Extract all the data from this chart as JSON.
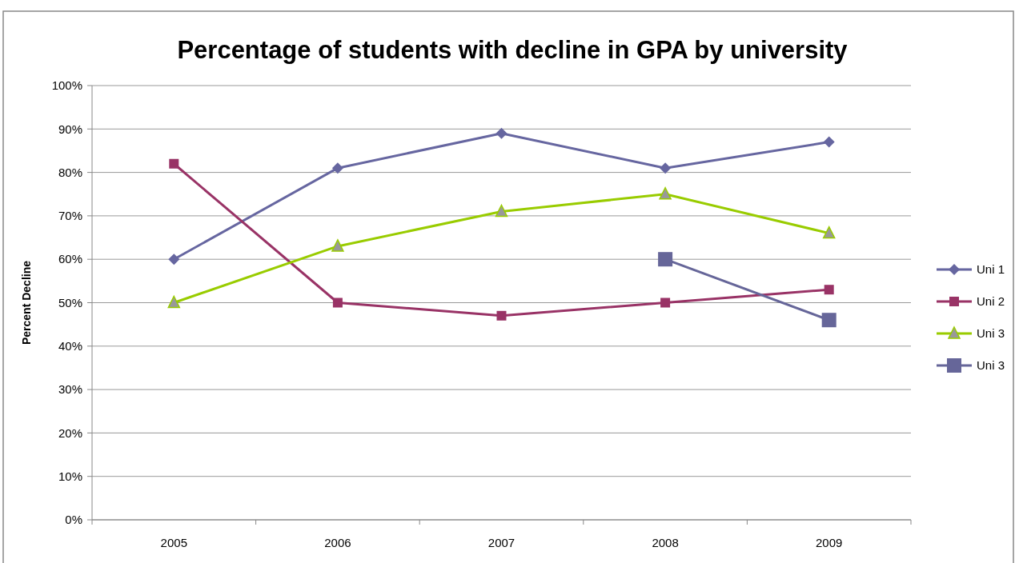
{
  "chart_data": {
    "type": "line",
    "title": "Percentage of students with decline in GPA by university",
    "ylabel": "Percent Decline",
    "categories": [
      "2005",
      "2006",
      "2007",
      "2008",
      "2009"
    ],
    "series": [
      {
        "name": "Uni 1",
        "color": "#6666a0",
        "marker": "diamond",
        "values": [
          60,
          81,
          89,
          81,
          87
        ]
      },
      {
        "name": "Uni 2",
        "color": "#993366",
        "marker": "square",
        "values": [
          82,
          50,
          47,
          50,
          53
        ]
      },
      {
        "name": "Uni 3",
        "color": "#99cc00",
        "marker": "triangle",
        "values": [
          50,
          63,
          71,
          75,
          66
        ]
      },
      {
        "name": "Uni 3",
        "color": "#666699",
        "marker": "square",
        "values": [
          null,
          null,
          null,
          60,
          46
        ]
      }
    ],
    "ylim": [
      0,
      100
    ],
    "yticks": [
      {
        "value": 0,
        "label": "0%"
      },
      {
        "value": 10,
        "label": "10%"
      },
      {
        "value": 20,
        "label": "20%"
      },
      {
        "value": 30,
        "label": "30%"
      },
      {
        "value": 40,
        "label": "40%"
      },
      {
        "value": 50,
        "label": "50%"
      },
      {
        "value": 60,
        "label": "60%"
      },
      {
        "value": 70,
        "label": "70%"
      },
      {
        "value": 80,
        "label": "80%"
      },
      {
        "value": 90,
        "label": "90%"
      },
      {
        "value": 100,
        "label": "100%"
      }
    ],
    "grid": "y",
    "legend": "right"
  }
}
